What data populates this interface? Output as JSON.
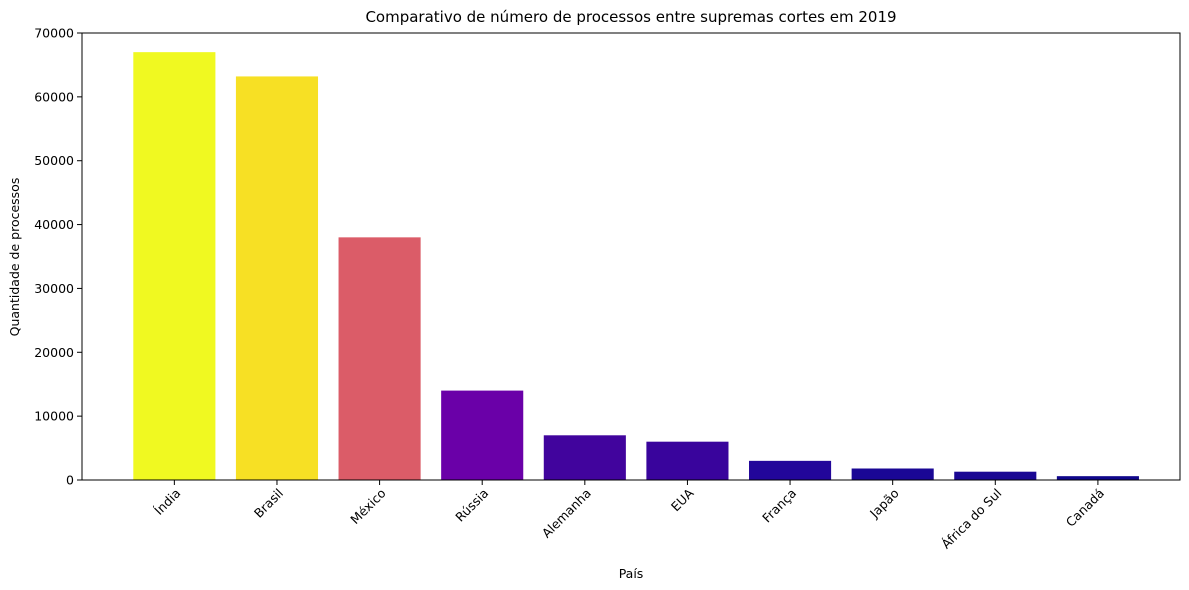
{
  "chart_data": {
    "type": "bar",
    "title": "Comparativo de número de processos entre supremas cortes em 2019",
    "xlabel": "País",
    "ylabel": "Quantidade de processos",
    "ylim": [
      0,
      70000
    ],
    "yticks": [
      0,
      10000,
      20000,
      30000,
      40000,
      50000,
      60000,
      70000
    ],
    "grid": false,
    "categories": [
      "Índia",
      "Brasil",
      "México",
      "Rússia",
      "Alemanha",
      "EUA",
      "França",
      "Japão",
      "África do Sul",
      "Canadá"
    ],
    "values": [
      67000,
      63200,
      38000,
      14000,
      7000,
      6000,
      3000,
      1800,
      1300,
      600
    ],
    "colors": [
      "#f0f921",
      "#f7e024",
      "#db5c68",
      "#6a00a8",
      "#41049d",
      "#39049c",
      "#22069a",
      "#1a0795",
      "#1a0793",
      "#10078b"
    ]
  }
}
